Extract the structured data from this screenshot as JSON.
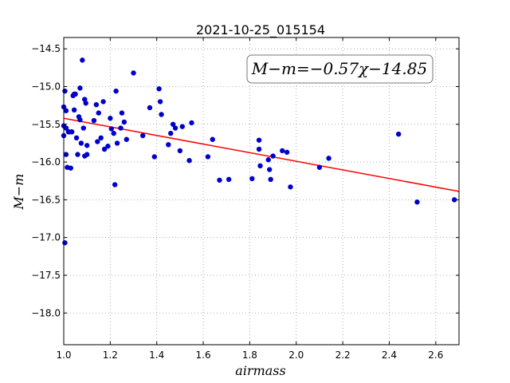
{
  "chart_data": {
    "type": "scatter",
    "title": "2021-10-25_015154",
    "xlabel": "airmass",
    "ylabel": "M−m",
    "xlim": [
      1.0,
      2.7
    ],
    "ylim": [
      -18.42,
      -14.35
    ],
    "x_ticks": [
      1.0,
      1.2,
      1.4,
      1.6,
      1.8,
      2.0,
      2.2,
      2.4,
      2.6
    ],
    "x_tick_labels": [
      "1.0",
      "1.2",
      "1.4",
      "1.6",
      "1.8",
      "2.0",
      "2.2",
      "2.4",
      "2.6"
    ],
    "y_ticks": [
      -14.5,
      -15.0,
      -15.5,
      -16.0,
      -16.5,
      -17.0,
      -17.5,
      -18.0
    ],
    "y_tick_labels": [
      "−14.5",
      "−15.0",
      "−15.5",
      "−16.0",
      "−16.5",
      "−17.0",
      "−17.5",
      "−18.0"
    ],
    "grid": true,
    "annotation": "M−m=−0.57χ−14.85",
    "fit": {
      "slope": -0.57,
      "intercept": -14.85,
      "color": "#ff0000"
    },
    "point_color": "#0000cc",
    "points": [
      [
        1.0,
        -15.27
      ],
      [
        1.0,
        -15.52
      ],
      [
        1.0,
        -15.65
      ],
      [
        1.005,
        -17.07
      ],
      [
        1.005,
        -15.06
      ],
      [
        1.01,
        -15.32
      ],
      [
        1.01,
        -15.55
      ],
      [
        1.01,
        -15.9
      ],
      [
        1.015,
        -16.07
      ],
      [
        1.02,
        -15.6
      ],
      [
        1.025,
        -15.6
      ],
      [
        1.03,
        -16.08
      ],
      [
        1.035,
        -15.6
      ],
      [
        1.04,
        -15.12
      ],
      [
        1.045,
        -15.31
      ],
      [
        1.045,
        -15.1
      ],
      [
        1.05,
        -15.1
      ],
      [
        1.055,
        -15.68
      ],
      [
        1.06,
        -15.9
      ],
      [
        1.065,
        -15.4
      ],
      [
        1.07,
        -15.02
      ],
      [
        1.07,
        -15.44
      ],
      [
        1.075,
        -15.75
      ],
      [
        1.08,
        -14.65
      ],
      [
        1.085,
        -15.55
      ],
      [
        1.09,
        -15.92
      ],
      [
        1.09,
        -15.17
      ],
      [
        1.095,
        -15.22
      ],
      [
        1.1,
        -15.78
      ],
      [
        1.1,
        -15.9
      ],
      [
        1.13,
        -15.45
      ],
      [
        1.14,
        -15.24
      ],
      [
        1.145,
        -15.73
      ],
      [
        1.15,
        -15.35
      ],
      [
        1.16,
        -15.68
      ],
      [
        1.17,
        -15.2
      ],
      [
        1.175,
        -15.83
      ],
      [
        1.19,
        -15.79
      ],
      [
        1.2,
        -15.42
      ],
      [
        1.205,
        -15.56
      ],
      [
        1.215,
        -15.62
      ],
      [
        1.22,
        -16.3
      ],
      [
        1.225,
        -15.06
      ],
      [
        1.23,
        -15.75
      ],
      [
        1.245,
        -15.55
      ],
      [
        1.25,
        -15.35
      ],
      [
        1.26,
        -15.47
      ],
      [
        1.27,
        -15.7
      ],
      [
        1.3,
        -14.82
      ],
      [
        1.34,
        -15.65
      ],
      [
        1.37,
        -15.28
      ],
      [
        1.39,
        -15.93
      ],
      [
        1.41,
        -15.03
      ],
      [
        1.415,
        -15.2
      ],
      [
        1.42,
        -15.37
      ],
      [
        1.45,
        -15.77
      ],
      [
        1.46,
        -15.62
      ],
      [
        1.47,
        -15.5
      ],
      [
        1.48,
        -15.55
      ],
      [
        1.5,
        -15.85
      ],
      [
        1.51,
        -15.53
      ],
      [
        1.54,
        -15.98
      ],
      [
        1.55,
        -15.48
      ],
      [
        1.62,
        -15.93
      ],
      [
        1.64,
        -15.7
      ],
      [
        1.67,
        -16.24
      ],
      [
        1.71,
        -16.23
      ],
      [
        1.81,
        -16.22
      ],
      [
        1.84,
        -15.83
      ],
      [
        1.84,
        -15.71
      ],
      [
        1.845,
        -16.05
      ],
      [
        1.88,
        -15.97
      ],
      [
        1.885,
        -16.1
      ],
      [
        1.89,
        -16.23
      ],
      [
        1.9,
        -15.92
      ],
      [
        1.94,
        -15.85
      ],
      [
        1.96,
        -15.87
      ],
      [
        1.975,
        -16.33
      ],
      [
        2.1,
        -16.07
      ],
      [
        2.14,
        -15.95
      ],
      [
        2.44,
        -15.63
      ],
      [
        2.52,
        -16.53
      ],
      [
        2.68,
        -16.5
      ]
    ]
  }
}
